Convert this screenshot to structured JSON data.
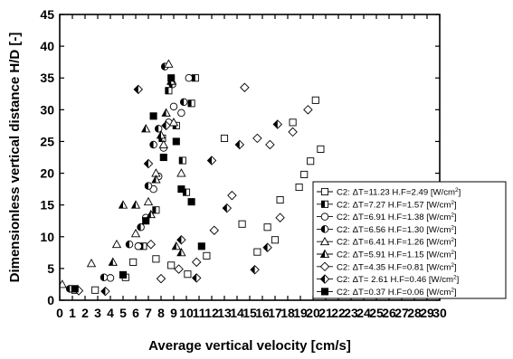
{
  "chart_data": {
    "type": "scatter",
    "xlabel": "Average vertical velocity [cm/s]",
    "ylabel": "Dimensionless vertical distance H/D [-]",
    "xlim": [
      0,
      30
    ],
    "ylim": [
      0,
      45
    ],
    "x_ticks": [
      0,
      1,
      2,
      3,
      4,
      5,
      6,
      7,
      8,
      9,
      10,
      11,
      12,
      13,
      14,
      15,
      16,
      17,
      18,
      19,
      20,
      21,
      22,
      23,
      24,
      25,
      26,
      27,
      28,
      29,
      30
    ],
    "y_ticks": [
      0,
      5,
      10,
      15,
      20,
      25,
      30,
      35,
      40,
      45
    ],
    "grid": false,
    "legend_position": "bottom-right",
    "series": [
      {
        "name": "C2: ΔT=11.23 H.F=2.49 [W/cm²]",
        "marker": "square-open",
        "x": [
          1.2,
          2.8,
          5.2,
          5.8,
          7.6,
          8.8,
          10.1,
          11.6,
          13.0,
          14.4,
          15.6,
          16.4,
          17.0,
          17.4,
          18.4,
          18.9,
          19.3,
          19.8,
          20.2,
          20.6
        ],
        "y": [
          1.6,
          1.6,
          3.6,
          6.0,
          6.5,
          5.5,
          4.1,
          7.0,
          25.5,
          12.0,
          7.6,
          11.5,
          9.5,
          15.8,
          28.0,
          17.8,
          19.8,
          21.9,
          31.5,
          23.8
        ]
      },
      {
        "name": "C2: ΔT=7.27 H.F=1.57 [W/cm²]",
        "marker": "square-half",
        "x": [
          6.6,
          7.6,
          8.1,
          8.6,
          9.2,
          9.7,
          10.0,
          10.4,
          10.7
        ],
        "y": [
          8.5,
          14.2,
          25.5,
          33.0,
          27.5,
          22.0,
          17.0,
          31.0,
          35.0
        ]
      },
      {
        "name": "C2: ΔT=6.91 H.F=1.38 [W/cm²]",
        "marker": "circle-open",
        "x": [
          4.0,
          6.2,
          6.8,
          7.4,
          7.8,
          8.2,
          8.6,
          9.0,
          9.6,
          10.2
        ],
        "y": [
          3.5,
          8.5,
          13.0,
          17.5,
          19.5,
          24.0,
          28.0,
          30.5,
          29.5,
          35.0
        ]
      },
      {
        "name": "C2: ΔT=6.56 H.F=1.30 [W/cm²]",
        "marker": "circle-half",
        "x": [
          0.8,
          3.5,
          5.5,
          6.4,
          7.0,
          7.4,
          7.8,
          8.3,
          8.9,
          9.8
        ],
        "y": [
          1.8,
          3.6,
          8.8,
          11.5,
          18.0,
          24.5,
          27.0,
          36.8,
          34.0,
          31.2
        ]
      },
      {
        "name": "C2: ΔT=6.41 H.F=1.26 [W/cm²]",
        "marker": "triangle-open",
        "x": [
          0.2,
          2.5,
          4.5,
          6.0,
          7.0,
          7.6,
          8.2,
          8.6,
          9.0,
          9.6
        ],
        "y": [
          2.5,
          5.8,
          8.8,
          10.5,
          15.5,
          20.0,
          24.5,
          37.2,
          28.0,
          20.0
        ]
      },
      {
        "name": "C2: ΔT=5.91 H.F=1.15 [W/cm²]",
        "marker": "triangle-half",
        "x": [
          4.2,
          5.0,
          6.0,
          6.8,
          7.2,
          7.6,
          8.0,
          8.4,
          8.8,
          9.2,
          9.6
        ],
        "y": [
          6.0,
          15.0,
          15.0,
          27.0,
          13.5,
          19.0,
          26.0,
          29.5,
          34.5,
          8.5,
          7.5
        ]
      },
      {
        "name": "C2: ΔT=4.35 H.F=0.81 [W/cm²]",
        "marker": "diamond-open",
        "x": [
          1.5,
          7.2,
          8.0,
          9.4,
          10.8,
          12.2,
          13.6,
          14.6,
          15.6,
          16.6,
          17.4,
          18.4,
          19.6
        ],
        "y": [
          1.5,
          8.8,
          3.4,
          4.9,
          6.0,
          11.0,
          16.5,
          33.5,
          25.5,
          24.5,
          13.0,
          26.5,
          30.0
        ]
      },
      {
        "name": "C2: ΔT= 2.61 H.F=0.46 [W/cm²]",
        "marker": "diamond-half",
        "x": [
          3.6,
          6.2,
          7.0,
          8.4,
          9.6,
          10.8,
          12.0,
          13.2,
          14.2,
          15.4,
          16.4,
          17.2
        ],
        "y": [
          1.4,
          33.2,
          21.5,
          27.5,
          9.5,
          3.5,
          22.0,
          14.5,
          24.5,
          4.8,
          8.3,
          27.7
        ]
      },
      {
        "name": "C2: ΔT=0.37 H.F=0.06 [W/cm²]",
        "marker": "square-filled",
        "x": [
          1.2,
          5.0,
          6.8,
          7.4,
          8.2,
          8.8,
          9.2,
          9.6,
          10.4,
          11.2
        ],
        "y": [
          1.8,
          4.0,
          12.5,
          29.0,
          22.5,
          35.0,
          25.0,
          17.5,
          15.5,
          8.5
        ]
      }
    ]
  }
}
